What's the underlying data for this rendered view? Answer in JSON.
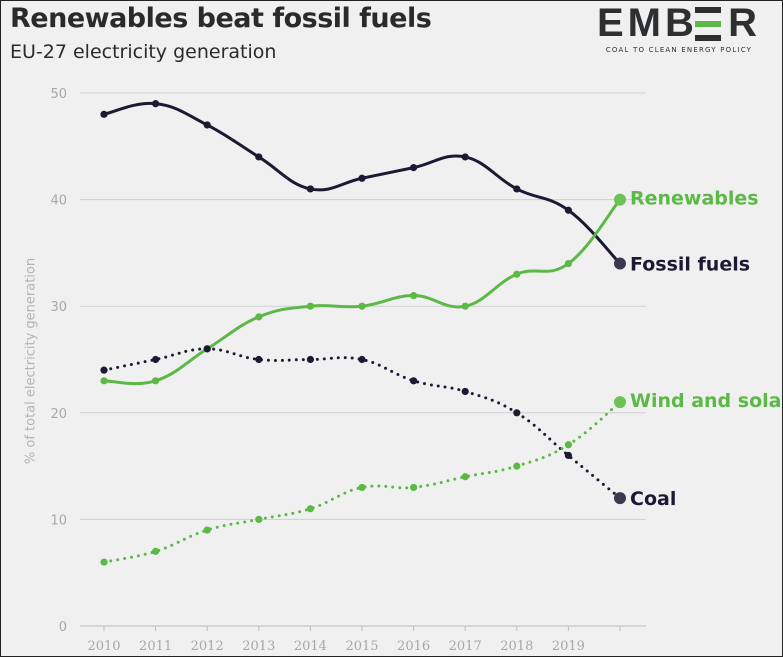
{
  "chart": {
    "title": "Renewables beat fossil fuels",
    "subtitle": "EU-27 electricity generation"
  },
  "logo": {
    "word": "EMBER",
    "tagline": "COAL TO CLEAN ENERGY POLICY",
    "accent_color": "#5cb847"
  },
  "chart_data": {
    "type": "line",
    "title": "Renewables beat fossil fuels",
    "subtitle": "EU-27 electricity generation",
    "xlabel": "",
    "ylabel": "% of total electricity generation",
    "x": [
      2010,
      2011,
      2012,
      2013,
      2014,
      2015,
      2016,
      2017,
      2018,
      2019,
      2020
    ],
    "x_tick_labels": [
      "2010",
      "2011",
      "2012",
      "2013",
      "2014",
      "2015",
      "2016",
      "2017",
      "2018",
      "2019",
      ""
    ],
    "ylim": [
      0,
      50
    ],
    "yticks": [
      0,
      10,
      20,
      30,
      40,
      50
    ],
    "grid": "horizontal",
    "legend": "direct labels at line ends",
    "series": [
      {
        "name": "Fossil fuels",
        "color": "#1c1a33",
        "style": "solid",
        "values": [
          48,
          49,
          47,
          44,
          41,
          42,
          43,
          44,
          41,
          39,
          34
        ]
      },
      {
        "name": "Renewables",
        "color": "#5cb847",
        "style": "solid",
        "values": [
          23,
          23,
          26,
          29,
          30,
          30,
          31,
          30,
          33,
          34,
          40
        ]
      },
      {
        "name": "Coal",
        "color": "#1c1a33",
        "style": "dotted",
        "values": [
          24,
          25,
          26,
          25,
          25,
          25,
          23,
          22,
          20,
          16,
          12
        ]
      },
      {
        "name": "Wind and solar",
        "color": "#5cb847",
        "style": "dotted",
        "values": [
          6,
          7,
          9,
          10,
          11,
          13,
          13,
          14,
          15,
          17,
          21
        ]
      }
    ]
  }
}
